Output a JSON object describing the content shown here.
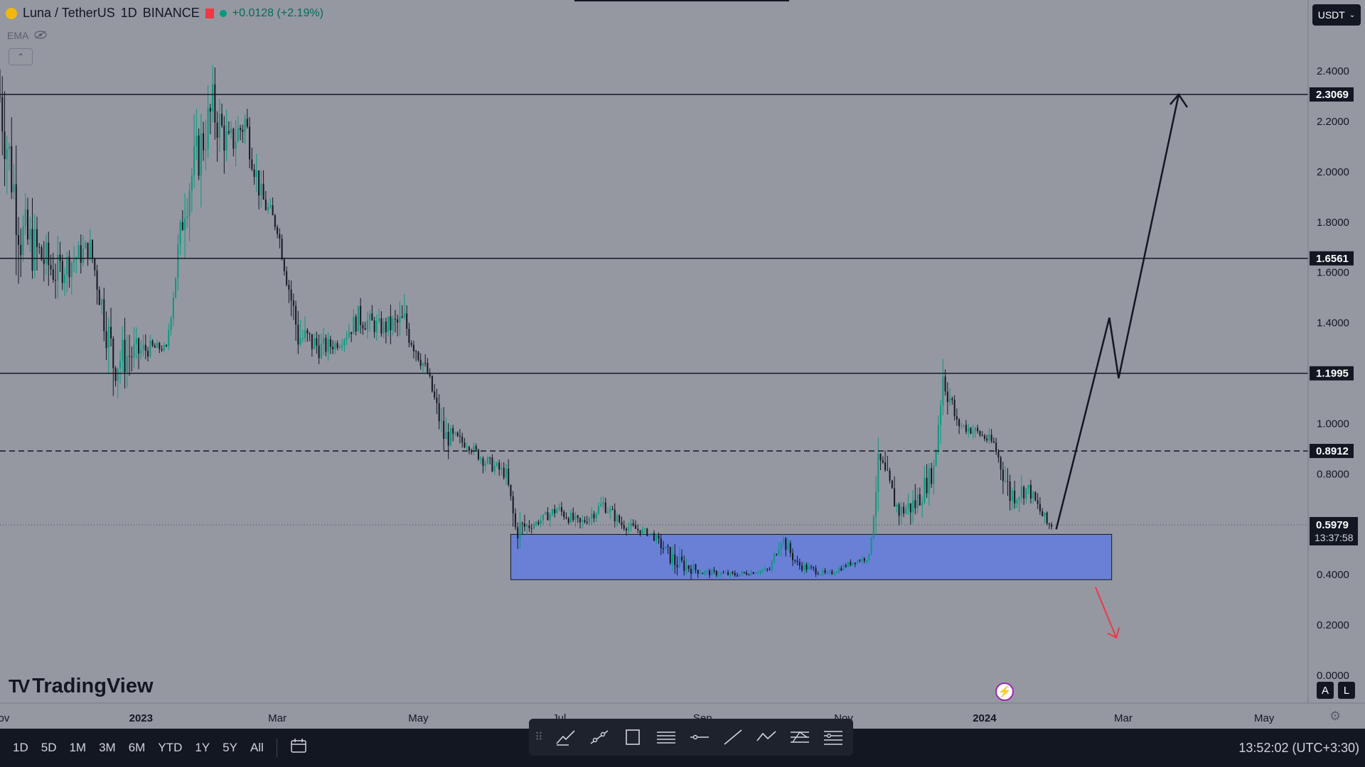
{
  "header": {
    "symbol": "Luna / TetherUS",
    "interval": "1D",
    "exchange": "BINANCE",
    "change": "+0.0128 (+2.19%)",
    "indicator": "EMA",
    "currency": "USDT"
  },
  "branding": {
    "logo_text": "TradingView"
  },
  "chart_data": {
    "type": "candlestick",
    "y_axis": {
      "ylim": [
        0,
        2.56
      ],
      "ticks": [
        "2.4000",
        "2.2000",
        "2.0000",
        "1.8000",
        "1.6000",
        "1.4000",
        "1.2000",
        "1.0000",
        "0.8000",
        "0.6000",
        "0.4000",
        "0.2000",
        "0.0000"
      ]
    },
    "x_axis": {
      "ticks": [
        "Nov",
        "2023",
        "Mar",
        "May",
        "Jul",
        "Sep",
        "Nov",
        "2024",
        "Mar",
        "May"
      ],
      "range": [
        "2022-11-01",
        "2024-05-20"
      ]
    },
    "last_price": "0.5979",
    "countdown": "13:37:58",
    "price_lines": [
      {
        "label": "2.3069",
        "value": 2.3069,
        "style": "solid"
      },
      {
        "label": "1.6561",
        "value": 1.6561,
        "style": "solid"
      },
      {
        "label": "1.1995",
        "value": 1.1995,
        "style": "solid"
      },
      {
        "label": "0.8912",
        "value": 0.8912,
        "style": "dashed"
      }
    ],
    "zone": {
      "from": "2023-06-10",
      "to": "2024-02-25",
      "low": 0.38,
      "high": 0.56,
      "color": "#6a80d6"
    },
    "series_ohlc_anchors": [
      [
        "2022-11-01",
        2.55,
        1.65,
        2.3
      ],
      [
        "2022-11-10",
        2.3,
        1.55,
        1.75
      ],
      [
        "2022-11-25",
        1.85,
        1.45,
        1.6
      ],
      [
        "2022-12-10",
        1.75,
        1.5,
        1.7
      ],
      [
        "2022-12-20",
        1.7,
        1.1,
        1.25
      ],
      [
        "2023-01-05",
        1.35,
        1.18,
        1.3
      ],
      [
        "2023-01-12",
        1.35,
        1.28,
        1.3
      ],
      [
        "2023-01-20",
        1.95,
        1.3,
        1.9
      ],
      [
        "2023-02-01",
        2.45,
        1.85,
        2.25
      ],
      [
        "2023-02-08",
        2.42,
        2.0,
        2.1
      ],
      [
        "2023-02-15",
        2.35,
        1.95,
        2.2
      ],
      [
        "2023-02-22",
        2.0,
        1.7,
        1.9
      ],
      [
        "2023-03-01",
        1.85,
        1.68,
        1.78
      ],
      [
        "2023-03-10",
        1.72,
        1.3,
        1.35
      ],
      [
        "2023-03-20",
        1.45,
        1.2,
        1.3
      ],
      [
        "2023-03-28",
        1.35,
        1.25,
        1.32
      ],
      [
        "2023-04-05",
        1.55,
        1.28,
        1.42
      ],
      [
        "2023-04-15",
        1.45,
        1.25,
        1.38
      ],
      [
        "2023-04-25",
        1.65,
        1.28,
        1.4
      ],
      [
        "2023-05-05",
        1.3,
        1.15,
        1.2
      ],
      [
        "2023-05-12",
        1.22,
        0.92,
        0.95
      ],
      [
        "2023-05-22",
        0.98,
        0.88,
        0.92
      ],
      [
        "2023-05-30",
        0.98,
        0.82,
        0.85
      ],
      [
        "2023-06-08",
        0.92,
        0.78,
        0.8
      ],
      [
        "2023-06-12",
        0.82,
        0.48,
        0.58
      ],
      [
        "2023-06-20",
        0.62,
        0.55,
        0.6
      ],
      [
        "2023-06-30",
        0.72,
        0.57,
        0.66
      ],
      [
        "2023-07-10",
        0.7,
        0.57,
        0.6
      ],
      [
        "2023-07-20",
        0.72,
        0.57,
        0.68
      ],
      [
        "2023-07-28",
        0.7,
        0.58,
        0.6
      ],
      [
        "2023-08-10",
        0.62,
        0.55,
        0.56
      ],
      [
        "2023-08-20",
        0.58,
        0.36,
        0.45
      ],
      [
        "2023-09-01",
        0.46,
        0.39,
        0.41
      ],
      [
        "2023-09-15",
        0.44,
        0.38,
        0.4
      ],
      [
        "2023-09-30",
        0.43,
        0.38,
        0.42
      ],
      [
        "2023-10-05",
        0.6,
        0.42,
        0.55
      ],
      [
        "2023-10-12",
        0.52,
        0.42,
        0.44
      ],
      [
        "2023-10-25",
        0.44,
        0.38,
        0.4
      ],
      [
        "2023-11-05",
        0.46,
        0.4,
        0.45
      ],
      [
        "2023-11-12",
        0.5,
        0.43,
        0.47
      ],
      [
        "2023-11-16",
        0.88,
        0.47,
        0.85
      ],
      [
        "2023-11-25",
        0.8,
        0.6,
        0.65
      ],
      [
        "2023-12-02",
        0.9,
        0.58,
        0.68
      ],
      [
        "2023-12-10",
        0.85,
        0.62,
        0.82
      ],
      [
        "2023-12-14",
        1.28,
        0.82,
        1.2
      ],
      [
        "2023-12-20",
        1.1,
        0.95,
        1.0
      ],
      [
        "2023-12-28",
        1.05,
        0.92,
        0.97
      ],
      [
        "2024-01-05",
        1.02,
        0.88,
        0.92
      ],
      [
        "2024-01-12",
        0.92,
        0.58,
        0.72
      ],
      [
        "2024-01-20",
        0.8,
        0.65,
        0.74
      ],
      [
        "2024-01-28",
        0.75,
        0.58,
        0.6
      ],
      [
        "2024-01-31",
        0.62,
        0.55,
        0.5979
      ]
    ],
    "projection_up": [
      [
        "2024-02-01",
        0.58
      ],
      [
        "2024-02-24",
        1.42
      ],
      [
        "2024-02-28",
        1.18
      ],
      [
        "2024-03-25",
        2.3069
      ]
    ],
    "projection_down": [
      [
        "2024-02-18",
        0.35
      ],
      [
        "2024-02-27",
        0.15
      ]
    ]
  },
  "timeframes": [
    "1D",
    "5D",
    "1M",
    "3M",
    "6M",
    "YTD",
    "1Y",
    "5Y",
    "All"
  ],
  "clock": "13:52:02 (UTC+3:30)",
  "scale_buttons": [
    "A",
    "L"
  ],
  "colors": {
    "up": "#089981",
    "down": "#131722",
    "background": "#9598a1",
    "zone": "#6a80d6",
    "projection_down": "#f23645"
  },
  "icons": [
    "calendar-icon",
    "trend-line-icon",
    "ray-icon",
    "rectangle-icon",
    "parallel-lines-icon",
    "horizontal-line-icon",
    "line-icon",
    "path-icon",
    "pitchfork-icon",
    "fib-icon",
    "settings-icon",
    "lightning-icon"
  ]
}
